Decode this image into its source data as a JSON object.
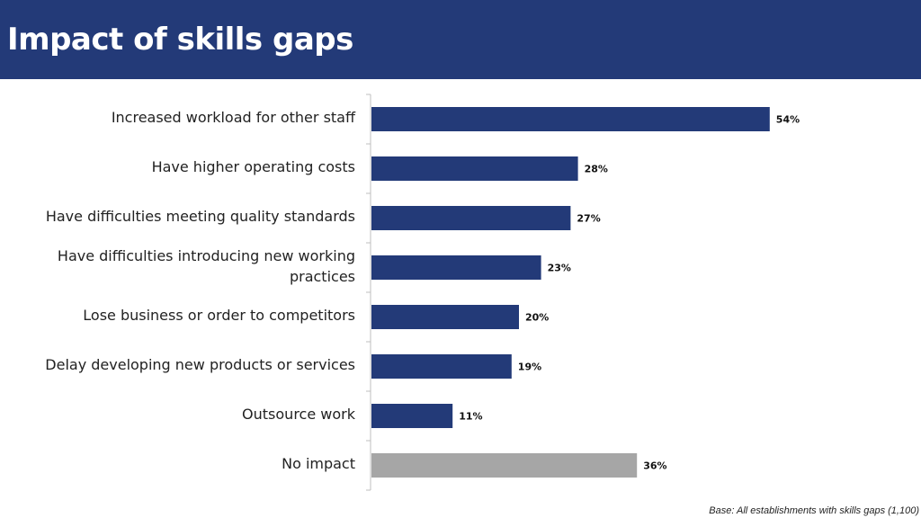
{
  "header": {
    "title": "Impact of skills gaps"
  },
  "footnote": "Base: All establishments with skills gaps (1,100)",
  "colors": {
    "header_bg": "#233a78",
    "bar": "#233a78",
    "bar_special": "#a6a6a6"
  },
  "chart_data": {
    "type": "bar",
    "orientation": "horizontal",
    "categories": [
      "Increased workload for other staff",
      "Have higher operating costs",
      "Have difficulties meeting quality standards",
      "Have difficulties introducing new working practices",
      "Lose business or order to competitors",
      "Delay developing new products or services",
      "Outsource work",
      "No impact"
    ],
    "values": [
      54,
      28,
      27,
      23,
      20,
      19,
      11,
      36
    ],
    "value_labels": [
      "54%",
      "28%",
      "27%",
      "23%",
      "20%",
      "19%",
      "11%",
      "36%"
    ],
    "unit": "%",
    "xlim": [
      0,
      100
    ],
    "grid": false,
    "legend": "none"
  }
}
